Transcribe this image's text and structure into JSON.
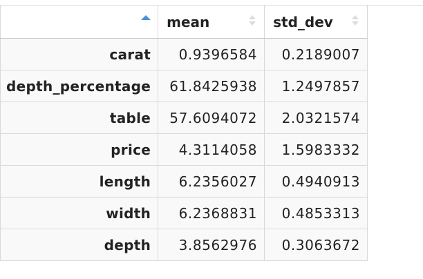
{
  "table": {
    "columns": [
      {
        "label": "",
        "sort": "ascending"
      },
      {
        "label": "mean",
        "sort": "none"
      },
      {
        "label": "std_dev",
        "sort": "none"
      }
    ],
    "rows": [
      {
        "name": "carat",
        "mean": "0.9396584",
        "std_dev": "0.2189007"
      },
      {
        "name": "depth_percentage",
        "mean": "61.8425938",
        "std_dev": "1.2497857"
      },
      {
        "name": "table",
        "mean": "57.6094072",
        "std_dev": "2.0321574"
      },
      {
        "name": "price",
        "mean": "4.3114058",
        "std_dev": "1.5983332"
      },
      {
        "name": "length",
        "mean": "6.2356027",
        "std_dev": "0.4940913"
      },
      {
        "name": "width",
        "mean": "6.2368831",
        "std_dev": "0.4853313"
      },
      {
        "name": "depth",
        "mean": "3.8562976",
        "std_dev": "0.3063672"
      }
    ],
    "icons": {
      "active_sort": "sort-ascending-icon",
      "inactive_sort": "sort-both-icon"
    },
    "colors": {
      "active_sort": "#4a90d9",
      "inactive_sort": "#dcdcdc",
      "border": "#d9d9d9",
      "row_background": "#f9f9f9"
    }
  }
}
